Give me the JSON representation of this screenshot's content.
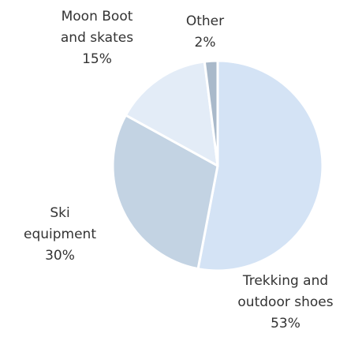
{
  "chart_data": {
    "type": "pie",
    "categories": [
      "Trekking and outdoor shoes",
      "Ski equipment",
      "Moon Boot and skates",
      "Other"
    ],
    "values": [
      53,
      30,
      15,
      2
    ],
    "value_labels": [
      "53%",
      "30%",
      "15%",
      "2%"
    ],
    "colors": [
      "#d4e3f5",
      "#c3d3e3",
      "#e3ecf7",
      "#a9b9ca"
    ]
  }
}
